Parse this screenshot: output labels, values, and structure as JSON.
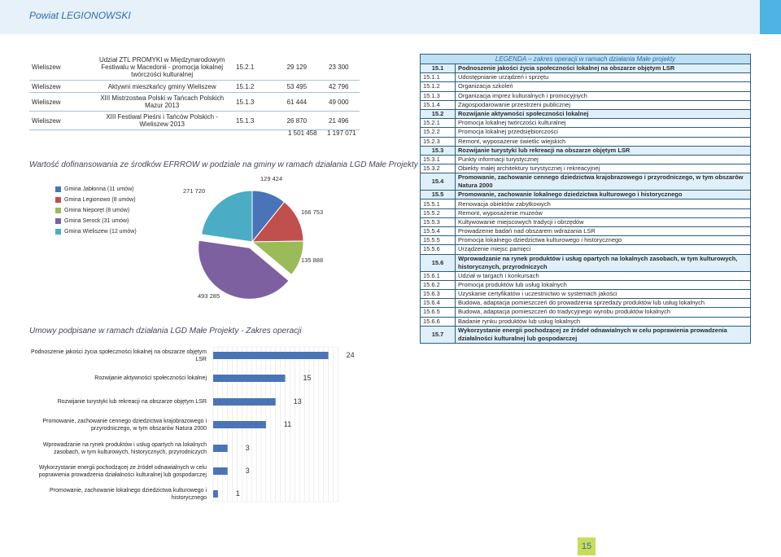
{
  "header": {
    "title": "Powiat LEGIONOWSKI"
  },
  "top_table": {
    "rows": [
      {
        "gmina": "Wieliszew",
        "title": "Udział ZTL PROMYKI w Międzynarodowym Festiwalu w Macedonii - promocja lokalnej twórczości kulturalnej",
        "code": "15.2.1",
        "v1": "29 129",
        "v2": "23 300"
      },
      {
        "gmina": "Wieliszew",
        "title": "Aktywni mieszkańcy gminy Wieliszew",
        "code": "15.1.2",
        "v1": "53 495",
        "v2": "42 796"
      },
      {
        "gmina": "Wieliszew",
        "title": "XIII Mistrzostwa Polski w Tańcach Polskich Mazur 2013",
        "code": "15.1.3",
        "v1": "61 444",
        "v2": "49 000"
      },
      {
        "gmina": "Wieliszew",
        "title": "XIII Festiwal Pieśni i Tańców Polskich - Wieliszew 2013",
        "code": "15.1.3",
        "v1": "26 870",
        "v2": "21 496"
      }
    ],
    "total_v1": "1 501 458",
    "total_v2": "1 197 071"
  },
  "pie_title": "Wartość dofinansowania ze środków EFRROW w podziale na gminy w ramach działania LGD Małe Projekty",
  "bar_title": "Umowy podpisane w ramach działania LGD Małe Projekty - Zakres operacji",
  "chart_data": [
    {
      "type": "pie",
      "title": "Wartość dofinansowania ze środków EFRROW w podziale na gminy w ramach działania LGD Małe Projekty",
      "categories": [
        "Gmina Jabłonna (11 umów)",
        "Gmina Legionowo (8 umów)",
        "Gmina Nieporęt (8 umów)",
        "Gmina Serock (31 umów)",
        "Gmina Wieliszew (12 umów)"
      ],
      "values": [
        129424,
        166753,
        135888,
        493285,
        271720
      ],
      "labels": [
        "129 424",
        "166 753",
        "135 888",
        "493 285",
        "271 720"
      ],
      "colors": [
        "#4a74b8",
        "#c0504d",
        "#9bbb59",
        "#7d60a0",
        "#4bacc6"
      ]
    },
    {
      "type": "bar",
      "orientation": "horizontal",
      "title": "Umowy podpisane w ramach działania LGD Małe Projekty - Zakres operacji",
      "categories": [
        "Podnoszenie jakości życia społeczności lokalnej na obszarze objętym LSR",
        "Rozwijanie aktywności społeczności lokalnej",
        "Rozwijanie turystyki lub rekreacji na obszarze objętym LSR",
        "Promowanie, zachowanie cennego dziedzictwa krajobrazowego i przyrodniczego, w tym obszarów Natura 2000",
        "Wprowadzanie na rynek produktów i usług opartych na lokalnych zasobach, w tym kulturowych, historycznych, przyrodniczych",
        "Wykorzystanie energii pochodzącej ze źródeł odnawialnych w celu poprawienia prowadzenia działalności kulturalnej lub gospodarczej",
        "Promowanie, zachowanie lokalnego dziedzictwa kulturowego i historycznego"
      ],
      "values": [
        24,
        15,
        13,
        11,
        3,
        3,
        1
      ],
      "color": "#4a74b8"
    }
  ],
  "legend": {
    "heading": "LEGENDA – zakres operacji w ramach działania Małe projekty",
    "rows": [
      {
        "code": "15.1",
        "text": "Podnoszenie jakości życia społeczności lokalnej na obszarze objętym LSR",
        "hl": true
      },
      {
        "code": "15.1.1",
        "text": "Udostępnianie urządzeń i sprzętu",
        "hl": false
      },
      {
        "code": "15.1.2",
        "text": "Organizacja szkoleń",
        "hl": false
      },
      {
        "code": "15.1.3",
        "text": "Organizacja imprez kulturalnych i promocyjnych",
        "hl": false
      },
      {
        "code": "15.1.4",
        "text": "Zagospodarowanie przestrzeni publicznej",
        "hl": false
      },
      {
        "code": "15.2",
        "text": "Rozwijanie aktywności społeczności lokalnej",
        "hl": true
      },
      {
        "code": "15.2.1",
        "text": "Promocja lokalnej twórczości kulturalnej",
        "hl": false
      },
      {
        "code": "15.2.2",
        "text": "Promocja lokalnej przedsiębiorczości",
        "hl": false
      },
      {
        "code": "15.2.3",
        "text": "Remont, wyposażenie świetlic wiejskich",
        "hl": false
      },
      {
        "code": "15.3",
        "text": "Rozwijanie turystyki lub rekreacji na obszarze objętym LSR",
        "hl": true
      },
      {
        "code": "15.3.1",
        "text": "Punkty informacji turystycznej",
        "hl": false
      },
      {
        "code": "15.3.2",
        "text": "Obiekty małej architektury turystycznej i rekreacyjnej",
        "hl": false
      },
      {
        "code": "15.4",
        "text": "Promowanie, zachowanie cennego dziedzictwa krajobrazowego i przyrodniczego, w tym obszarów Natura 2000",
        "hl": true
      },
      {
        "code": "15.5",
        "text": "Promowanie, zachowanie lokalnego dziedzictwa kulturowego i historycznego",
        "hl": true
      },
      {
        "code": "15.5.1",
        "text": "Renowacja obiektów zabytkowych",
        "hl": false
      },
      {
        "code": "15.5.2",
        "text": "Remont, wyposażenie muzeów",
        "hl": false
      },
      {
        "code": "15.5.3",
        "text": "Kultywowanie miejscowych tradycji i obrzędów",
        "hl": false
      },
      {
        "code": "15.5.4",
        "text": "Prowadzenie badań nad obszarem wdrażania LSR",
        "hl": false
      },
      {
        "code": "15.5.5",
        "text": "Promocja lokalnego dziedzictwa kulturowego i historycznego",
        "hl": false
      },
      {
        "code": "15.5.6",
        "text": "Urządzenie miejsc pamięci",
        "hl": false
      },
      {
        "code": "15.6",
        "text": "Wprowadzanie na rynek produktów i usług opartych na lokalnych zasobach, w tym kulturowych, historycznych, przyrodniczych",
        "hl": true
      },
      {
        "code": "15.6.1",
        "text": "Udział w targach i konkursach",
        "hl": false
      },
      {
        "code": "15.6.2",
        "text": "Promocja produktów lub usług lokalnych",
        "hl": false
      },
      {
        "code": "15.6.3",
        "text": "Uzyskanie certyfikatów i uczestnictwo w systemach jakości",
        "hl": false
      },
      {
        "code": "15.6.4",
        "text": "Budowa, adaptacja pomieszczeń do prowadzenia sprzedaży produktów lub usług lokalnych",
        "hl": false
      },
      {
        "code": "15.6.5",
        "text": "Budowa, adaptacja pomieszczeń do tradycyjnego wyrobu produktów lokalnych",
        "hl": false
      },
      {
        "code": "15.6.6",
        "text": "Badanie rynku produktów lub usług lokalnych",
        "hl": false
      },
      {
        "code": "15.7",
        "text": "Wykorzystanie energii pochodzącej ze źródeł odnawialnych w celu poprawienia prowadzenia działalności kulturalnej lub gospodarczej",
        "hl": true
      }
    ]
  },
  "page_number": "15"
}
